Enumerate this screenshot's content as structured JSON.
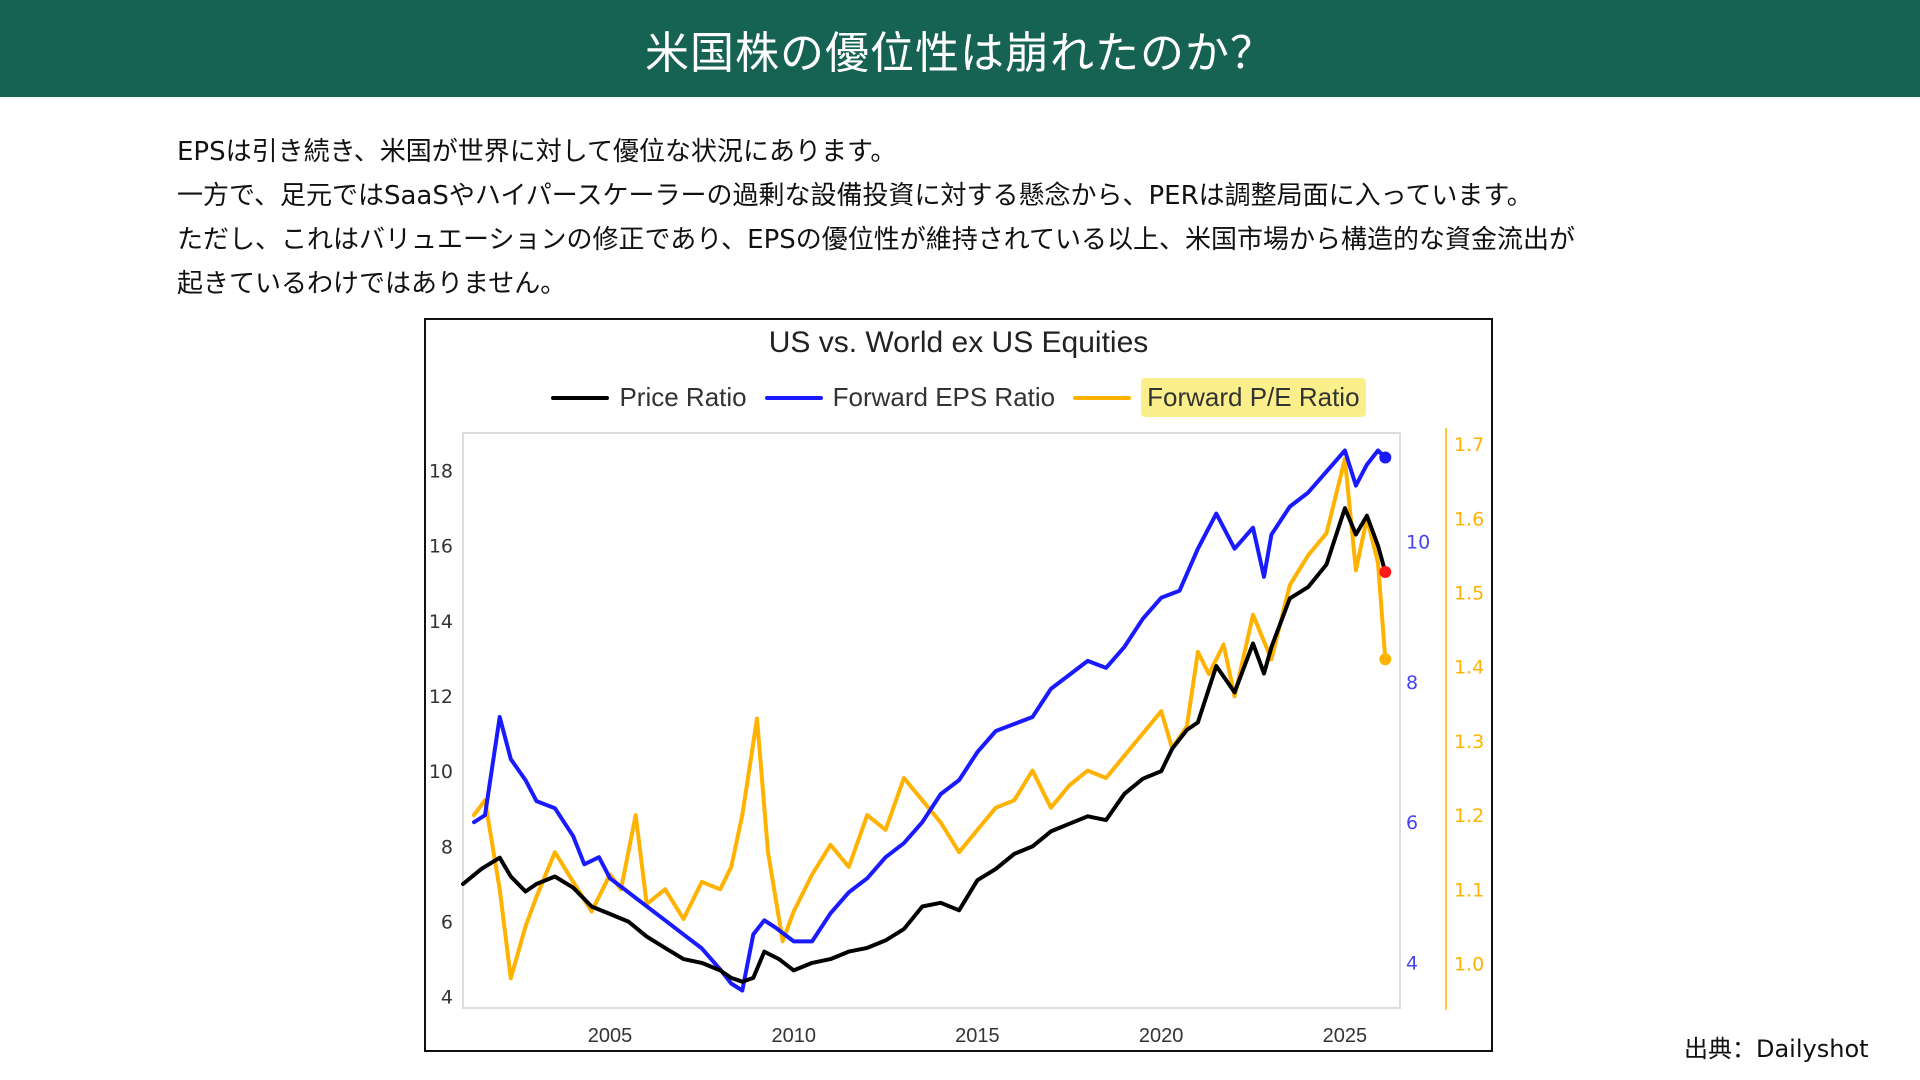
{
  "header": {
    "title": "米国株の優位性は崩れたのか？"
  },
  "body": {
    "lines": [
      "EPSは引き続き、米国が世界に対して優位な状況にあります。",
      "一方で、足元ではSaaSやハイパースケーラーの過剰な設備投資に対する懸念から、PERは調整局面に入っています。",
      "ただし、これはバリュエーションの修正であり、EPSの優位性が維持されている以上、米国市場から構造的な資金流出が",
      "起きているわけではありません。"
    ]
  },
  "source": "出典：Dailyshot",
  "colors": {
    "header_bg": "#176353",
    "price": "#000000",
    "eps": "#1a1aff",
    "pe": "#ffb300",
    "last_price_dot": "#ff1a1a",
    "legend_highlight": "#fbef8c"
  },
  "chart_data": {
    "type": "line",
    "title": "US vs. World ex US Equities",
    "legend_position": "top-center",
    "legend": [
      "Price Ratio",
      "Forward EPS Ratio",
      "Forward P/E Ratio"
    ],
    "x_ticks": [
      "2005",
      "2010",
      "2015",
      "2020",
      "2025"
    ],
    "x_tick_values": [
      2005,
      2010,
      2015,
      2020,
      2025
    ],
    "xlim": [
      2001.0,
      2026.5
    ],
    "axes": {
      "left": {
        "series": "Price Ratio",
        "ylim": [
          3.7,
          19.0
        ],
        "ticks": [
          "4",
          "6",
          "8",
          "10",
          "12",
          "14",
          "16",
          "18"
        ],
        "tick_values": [
          4,
          6,
          8,
          10,
          12,
          14,
          16,
          18
        ]
      },
      "right_eps": {
        "series": "Forward EPS Ratio",
        "ylim": [
          3.35,
          11.55
        ],
        "ticks": [
          "4",
          "6",
          "8",
          "10"
        ],
        "tick_values": [
          4,
          6,
          8,
          10
        ]
      },
      "right_pe": {
        "series": "Forward P/E Ratio",
        "ylim": [
          0.94,
          1.715
        ],
        "ticks": [
          "1.0",
          "1.1",
          "1.2",
          "1.3",
          "1.4",
          "1.5",
          "1.6",
          "1.7"
        ],
        "tick_values": [
          1.0,
          1.1,
          1.2,
          1.3,
          1.4,
          1.5,
          1.6,
          1.7
        ]
      }
    },
    "series": [
      {
        "name": "Price Ratio",
        "axis": "left",
        "x": [
          2001.0,
          2001.5,
          2002.0,
          2002.3,
          2002.7,
          2003.0,
          2003.5,
          2004.0,
          2004.5,
          2005.0,
          2005.5,
          2006.0,
          2006.5,
          2007.0,
          2007.5,
          2008.0,
          2008.3,
          2008.6,
          2008.9,
          2009.2,
          2009.6,
          2010.0,
          2010.5,
          2011.0,
          2011.5,
          2012.0,
          2012.5,
          2013.0,
          2013.5,
          2014.0,
          2014.5,
          2015.0,
          2015.5,
          2016.0,
          2016.5,
          2017.0,
          2017.5,
          2018.0,
          2018.5,
          2019.0,
          2019.5,
          2020.0,
          2020.3,
          2020.7,
          2021.0,
          2021.5,
          2022.0,
          2022.5,
          2022.8,
          2023.0,
          2023.5,
          2024.0,
          2024.5,
          2025.0,
          2025.3,
          2025.6,
          2025.9,
          2026.1
        ],
        "values": [
          7.0,
          7.4,
          7.7,
          7.2,
          6.8,
          7.0,
          7.2,
          6.9,
          6.4,
          6.2,
          6.0,
          5.6,
          5.3,
          5.0,
          4.9,
          4.7,
          4.5,
          4.4,
          4.5,
          5.2,
          5.0,
          4.7,
          4.9,
          5.0,
          5.2,
          5.3,
          5.5,
          5.8,
          6.4,
          6.5,
          6.3,
          7.1,
          7.4,
          7.8,
          8.0,
          8.4,
          8.6,
          8.8,
          8.7,
          9.4,
          9.8,
          10.0,
          10.6,
          11.1,
          11.3,
          12.8,
          12.1,
          13.4,
          12.6,
          13.3,
          14.6,
          14.9,
          15.5,
          17.0,
          16.3,
          16.8,
          16.0,
          15.3
        ]
      },
      {
        "name": "Forward EPS Ratio",
        "axis": "right_eps",
        "x": [
          2001.3,
          2001.6,
          2002.0,
          2002.3,
          2002.7,
          2003.0,
          2003.5,
          2004.0,
          2004.3,
          2004.7,
          2005.0,
          2005.5,
          2006.0,
          2006.5,
          2007.0,
          2007.5,
          2008.0,
          2008.3,
          2008.6,
          2008.9,
          2009.2,
          2009.5,
          2010.0,
          2010.5,
          2011.0,
          2011.5,
          2012.0,
          2012.5,
          2013.0,
          2013.5,
          2014.0,
          2014.5,
          2015.0,
          2015.5,
          2016.0,
          2016.5,
          2017.0,
          2017.5,
          2018.0,
          2018.5,
          2019.0,
          2019.5,
          2020.0,
          2020.5,
          2021.0,
          2021.5,
          2022.0,
          2022.5,
          2022.8,
          2023.0,
          2023.5,
          2024.0,
          2024.5,
          2025.0,
          2025.3,
          2025.6,
          2025.9,
          2026.1
        ],
        "values": [
          6.0,
          6.1,
          7.5,
          6.9,
          6.6,
          6.3,
          6.2,
          5.8,
          5.4,
          5.5,
          5.2,
          5.0,
          4.8,
          4.6,
          4.4,
          4.2,
          3.9,
          3.7,
          3.6,
          4.4,
          4.6,
          4.5,
          4.3,
          4.3,
          4.7,
          5.0,
          5.2,
          5.5,
          5.7,
          6.0,
          6.4,
          6.6,
          7.0,
          7.3,
          7.4,
          7.5,
          7.9,
          8.1,
          8.3,
          8.2,
          8.5,
          8.9,
          9.2,
          9.3,
          9.9,
          10.4,
          9.9,
          10.2,
          9.5,
          10.1,
          10.5,
          10.7,
          11.0,
          11.3,
          10.8,
          11.1,
          11.3,
          11.2
        ]
      },
      {
        "name": "Forward P/E Ratio",
        "axis": "right_pe",
        "x": [
          2001.3,
          2001.6,
          2002.0,
          2002.3,
          2002.7,
          2003.0,
          2003.5,
          2004.0,
          2004.5,
          2005.0,
          2005.3,
          2005.7,
          2006.0,
          2006.5,
          2007.0,
          2007.5,
          2008.0,
          2008.3,
          2008.6,
          2009.0,
          2009.3,
          2009.7,
          2010.0,
          2010.5,
          2011.0,
          2011.5,
          2012.0,
          2012.5,
          2013.0,
          2013.5,
          2014.0,
          2014.5,
          2015.0,
          2015.5,
          2016.0,
          2016.5,
          2017.0,
          2017.5,
          2018.0,
          2018.5,
          2019.0,
          2019.5,
          2020.0,
          2020.3,
          2020.7,
          2021.0,
          2021.3,
          2021.7,
          2022.0,
          2022.5,
          2023.0,
          2023.5,
          2024.0,
          2024.5,
          2025.0,
          2025.3,
          2025.6,
          2025.9,
          2026.1
        ],
        "values": [
          1.2,
          1.22,
          1.1,
          0.98,
          1.05,
          1.09,
          1.15,
          1.11,
          1.07,
          1.12,
          1.1,
          1.2,
          1.08,
          1.1,
          1.06,
          1.11,
          1.1,
          1.13,
          1.2,
          1.33,
          1.15,
          1.03,
          1.07,
          1.12,
          1.16,
          1.13,
          1.2,
          1.18,
          1.25,
          1.22,
          1.19,
          1.15,
          1.18,
          1.21,
          1.22,
          1.26,
          1.21,
          1.24,
          1.26,
          1.25,
          1.28,
          1.31,
          1.34,
          1.29,
          1.32,
          1.42,
          1.39,
          1.43,
          1.36,
          1.47,
          1.41,
          1.51,
          1.55,
          1.58,
          1.68,
          1.53,
          1.6,
          1.54,
          1.41
        ]
      }
    ],
    "end_markers": [
      {
        "series": "Forward EPS Ratio",
        "value": 11.2
      },
      {
        "series": "Price Ratio",
        "value": 15.3
      },
      {
        "series": "Forward P/E Ratio",
        "value": 1.41
      }
    ]
  }
}
